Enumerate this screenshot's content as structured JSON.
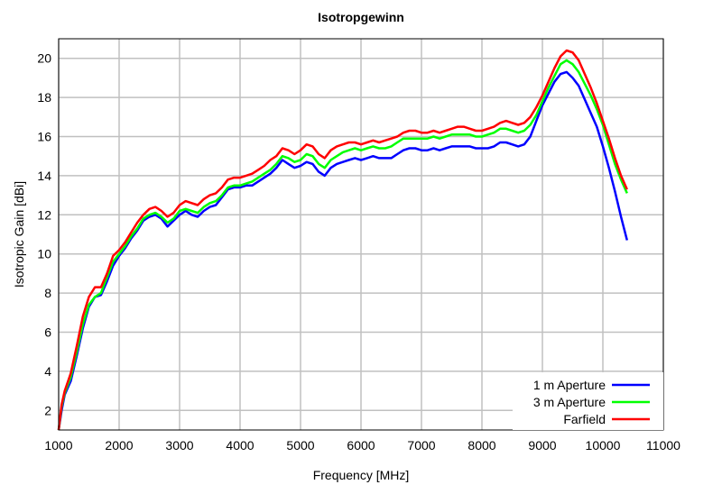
{
  "chart_data": {
    "type": "line",
    "title": "Isotropgewinn",
    "xlabel": "Frequency [MHz]",
    "ylabel": "Isotropic Gain [dBi]",
    "xlim": [
      1000,
      11000
    ],
    "ylim": [
      1,
      21
    ],
    "x_ticks": [
      1000,
      2000,
      3000,
      4000,
      5000,
      6000,
      7000,
      8000,
      9000,
      10000,
      11000
    ],
    "y_ticks": [
      2,
      4,
      6,
      8,
      10,
      12,
      14,
      16,
      18,
      20
    ],
    "grid": true,
    "legend_position": "bottom-right",
    "series": [
      {
        "name": "1 m Aperture",
        "color": "#0000ff",
        "points": [
          [
            1000,
            1.0
          ],
          [
            1050,
            2.0
          ],
          [
            1100,
            2.8
          ],
          [
            1200,
            3.5
          ],
          [
            1300,
            4.8
          ],
          [
            1400,
            6.2
          ],
          [
            1500,
            7.3
          ],
          [
            1600,
            7.8
          ],
          [
            1700,
            7.9
          ],
          [
            1800,
            8.6
          ],
          [
            1900,
            9.4
          ],
          [
            2000,
            9.9
          ],
          [
            2100,
            10.3
          ],
          [
            2200,
            10.8
          ],
          [
            2300,
            11.2
          ],
          [
            2400,
            11.7
          ],
          [
            2500,
            11.9
          ],
          [
            2600,
            12.0
          ],
          [
            2700,
            11.8
          ],
          [
            2800,
            11.4
          ],
          [
            2900,
            11.7
          ],
          [
            3000,
            12.0
          ],
          [
            3100,
            12.2
          ],
          [
            3200,
            12.0
          ],
          [
            3300,
            11.9
          ],
          [
            3400,
            12.2
          ],
          [
            3500,
            12.4
          ],
          [
            3600,
            12.5
          ],
          [
            3700,
            12.9
          ],
          [
            3800,
            13.3
          ],
          [
            3900,
            13.4
          ],
          [
            4000,
            13.4
          ],
          [
            4100,
            13.5
          ],
          [
            4200,
            13.5
          ],
          [
            4300,
            13.7
          ],
          [
            4400,
            13.9
          ],
          [
            4500,
            14.1
          ],
          [
            4600,
            14.4
          ],
          [
            4700,
            14.8
          ],
          [
            4800,
            14.6
          ],
          [
            4900,
            14.4
          ],
          [
            5000,
            14.5
          ],
          [
            5100,
            14.7
          ],
          [
            5200,
            14.6
          ],
          [
            5300,
            14.2
          ],
          [
            5400,
            14.0
          ],
          [
            5500,
            14.4
          ],
          [
            5600,
            14.6
          ],
          [
            5700,
            14.7
          ],
          [
            5800,
            14.8
          ],
          [
            5900,
            14.9
          ],
          [
            6000,
            14.8
          ],
          [
            6100,
            14.9
          ],
          [
            6200,
            15.0
          ],
          [
            6300,
            14.9
          ],
          [
            6400,
            14.9
          ],
          [
            6500,
            14.9
          ],
          [
            6600,
            15.1
          ],
          [
            6700,
            15.3
          ],
          [
            6800,
            15.4
          ],
          [
            6900,
            15.4
          ],
          [
            7000,
            15.3
          ],
          [
            7100,
            15.3
          ],
          [
            7200,
            15.4
          ],
          [
            7300,
            15.3
          ],
          [
            7400,
            15.4
          ],
          [
            7500,
            15.5
          ],
          [
            7600,
            15.5
          ],
          [
            7700,
            15.5
          ],
          [
            7800,
            15.5
          ],
          [
            7900,
            15.4
          ],
          [
            8000,
            15.4
          ],
          [
            8100,
            15.4
          ],
          [
            8200,
            15.5
          ],
          [
            8300,
            15.7
          ],
          [
            8400,
            15.7
          ],
          [
            8500,
            15.6
          ],
          [
            8600,
            15.5
          ],
          [
            8700,
            15.6
          ],
          [
            8800,
            16.0
          ],
          [
            8900,
            16.8
          ],
          [
            9000,
            17.6
          ],
          [
            9100,
            18.2
          ],
          [
            9200,
            18.8
          ],
          [
            9300,
            19.2
          ],
          [
            9400,
            19.3
          ],
          [
            9500,
            19.0
          ],
          [
            9600,
            18.6
          ],
          [
            9700,
            17.9
          ],
          [
            9800,
            17.2
          ],
          [
            9900,
            16.5
          ],
          [
            10000,
            15.5
          ],
          [
            10100,
            14.4
          ],
          [
            10200,
            13.2
          ],
          [
            10300,
            11.9
          ],
          [
            10400,
            10.7
          ]
        ]
      },
      {
        "name": "3 m Aperture",
        "color": "#00ff00",
        "points": [
          [
            1000,
            1.0
          ],
          [
            1050,
            2.2
          ],
          [
            1100,
            2.9
          ],
          [
            1200,
            3.7
          ],
          [
            1300,
            5.0
          ],
          [
            1400,
            6.4
          ],
          [
            1500,
            7.4
          ],
          [
            1600,
            7.8
          ],
          [
            1700,
            8.0
          ],
          [
            1800,
            8.8
          ],
          [
            1900,
            9.6
          ],
          [
            2000,
            10.0
          ],
          [
            2100,
            10.4
          ],
          [
            2200,
            10.9
          ],
          [
            2300,
            11.3
          ],
          [
            2400,
            11.8
          ],
          [
            2500,
            12.0
          ],
          [
            2600,
            12.1
          ],
          [
            2700,
            11.9
          ],
          [
            2800,
            11.6
          ],
          [
            2900,
            11.8
          ],
          [
            3000,
            12.2
          ],
          [
            3100,
            12.3
          ],
          [
            3200,
            12.2
          ],
          [
            3300,
            12.1
          ],
          [
            3400,
            12.4
          ],
          [
            3500,
            12.6
          ],
          [
            3600,
            12.7
          ],
          [
            3700,
            13.0
          ],
          [
            3800,
            13.4
          ],
          [
            3900,
            13.5
          ],
          [
            4000,
            13.5
          ],
          [
            4100,
            13.6
          ],
          [
            4200,
            13.7
          ],
          [
            4300,
            13.9
          ],
          [
            4400,
            14.1
          ],
          [
            4500,
            14.3
          ],
          [
            4600,
            14.6
          ],
          [
            4700,
            15.0
          ],
          [
            4800,
            14.9
          ],
          [
            4900,
            14.7
          ],
          [
            5000,
            14.8
          ],
          [
            5100,
            15.1
          ],
          [
            5200,
            15.0
          ],
          [
            5300,
            14.6
          ],
          [
            5400,
            14.4
          ],
          [
            5500,
            14.8
          ],
          [
            5600,
            15.0
          ],
          [
            5700,
            15.2
          ],
          [
            5800,
            15.3
          ],
          [
            5900,
            15.4
          ],
          [
            6000,
            15.3
          ],
          [
            6100,
            15.4
          ],
          [
            6200,
            15.5
          ],
          [
            6300,
            15.4
          ],
          [
            6400,
            15.4
          ],
          [
            6500,
            15.5
          ],
          [
            6600,
            15.7
          ],
          [
            6700,
            15.9
          ],
          [
            6800,
            15.9
          ],
          [
            6900,
            15.9
          ],
          [
            7000,
            15.9
          ],
          [
            7100,
            15.9
          ],
          [
            7200,
            16.0
          ],
          [
            7300,
            15.9
          ],
          [
            7400,
            16.0
          ],
          [
            7500,
            16.1
          ],
          [
            7600,
            16.1
          ],
          [
            7700,
            16.1
          ],
          [
            7800,
            16.1
          ],
          [
            7900,
            16.0
          ],
          [
            8000,
            16.0
          ],
          [
            8100,
            16.1
          ],
          [
            8200,
            16.2
          ],
          [
            8300,
            16.4
          ],
          [
            8400,
            16.4
          ],
          [
            8500,
            16.3
          ],
          [
            8600,
            16.2
          ],
          [
            8700,
            16.3
          ],
          [
            8800,
            16.6
          ],
          [
            8900,
            17.1
          ],
          [
            9000,
            17.8
          ],
          [
            9100,
            18.5
          ],
          [
            9200,
            19.1
          ],
          [
            9300,
            19.7
          ],
          [
            9400,
            19.9
          ],
          [
            9500,
            19.7
          ],
          [
            9600,
            19.3
          ],
          [
            9700,
            18.7
          ],
          [
            9800,
            18.1
          ],
          [
            9900,
            17.4
          ],
          [
            10000,
            16.6
          ],
          [
            10100,
            15.6
          ],
          [
            10200,
            14.6
          ],
          [
            10300,
            13.8
          ],
          [
            10400,
            13.1
          ]
        ]
      },
      {
        "name": "Farfield",
        "color": "#ff0000",
        "points": [
          [
            1000,
            1.0
          ],
          [
            1050,
            2.3
          ],
          [
            1100,
            3.0
          ],
          [
            1200,
            3.9
          ],
          [
            1300,
            5.3
          ],
          [
            1400,
            6.8
          ],
          [
            1500,
            7.8
          ],
          [
            1600,
            8.3
          ],
          [
            1700,
            8.3
          ],
          [
            1800,
            9.0
          ],
          [
            1900,
            9.9
          ],
          [
            2000,
            10.2
          ],
          [
            2100,
            10.6
          ],
          [
            2200,
            11.1
          ],
          [
            2300,
            11.6
          ],
          [
            2400,
            12.0
          ],
          [
            2500,
            12.3
          ],
          [
            2600,
            12.4
          ],
          [
            2700,
            12.2
          ],
          [
            2800,
            11.9
          ],
          [
            2900,
            12.1
          ],
          [
            3000,
            12.5
          ],
          [
            3100,
            12.7
          ],
          [
            3200,
            12.6
          ],
          [
            3300,
            12.5
          ],
          [
            3400,
            12.8
          ],
          [
            3500,
            13.0
          ],
          [
            3600,
            13.1
          ],
          [
            3700,
            13.4
          ],
          [
            3800,
            13.8
          ],
          [
            3900,
            13.9
          ],
          [
            4000,
            13.9
          ],
          [
            4100,
            14.0
          ],
          [
            4200,
            14.1
          ],
          [
            4300,
            14.3
          ],
          [
            4400,
            14.5
          ],
          [
            4500,
            14.8
          ],
          [
            4600,
            15.0
          ],
          [
            4700,
            15.4
          ],
          [
            4800,
            15.3
          ],
          [
            4900,
            15.1
          ],
          [
            5000,
            15.3
          ],
          [
            5100,
            15.6
          ],
          [
            5200,
            15.5
          ],
          [
            5300,
            15.1
          ],
          [
            5400,
            14.9
          ],
          [
            5500,
            15.3
          ],
          [
            5600,
            15.5
          ],
          [
            5700,
            15.6
          ],
          [
            5800,
            15.7
          ],
          [
            5900,
            15.7
          ],
          [
            6000,
            15.6
          ],
          [
            6100,
            15.7
          ],
          [
            6200,
            15.8
          ],
          [
            6300,
            15.7
          ],
          [
            6400,
            15.8
          ],
          [
            6500,
            15.9
          ],
          [
            6600,
            16.0
          ],
          [
            6700,
            16.2
          ],
          [
            6800,
            16.3
          ],
          [
            6900,
            16.3
          ],
          [
            7000,
            16.2
          ],
          [
            7100,
            16.2
          ],
          [
            7200,
            16.3
          ],
          [
            7300,
            16.2
          ],
          [
            7400,
            16.3
          ],
          [
            7500,
            16.4
          ],
          [
            7600,
            16.5
          ],
          [
            7700,
            16.5
          ],
          [
            7800,
            16.4
          ],
          [
            7900,
            16.3
          ],
          [
            8000,
            16.3
          ],
          [
            8100,
            16.4
          ],
          [
            8200,
            16.5
          ],
          [
            8300,
            16.7
          ],
          [
            8400,
            16.8
          ],
          [
            8500,
            16.7
          ],
          [
            8600,
            16.6
          ],
          [
            8700,
            16.7
          ],
          [
            8800,
            17.0
          ],
          [
            8900,
            17.5
          ],
          [
            9000,
            18.1
          ],
          [
            9100,
            18.8
          ],
          [
            9200,
            19.5
          ],
          [
            9300,
            20.1
          ],
          [
            9400,
            20.4
          ],
          [
            9500,
            20.3
          ],
          [
            9600,
            19.9
          ],
          [
            9700,
            19.2
          ],
          [
            9800,
            18.5
          ],
          [
            9900,
            17.7
          ],
          [
            10000,
            16.8
          ],
          [
            10100,
            15.9
          ],
          [
            10200,
            14.9
          ],
          [
            10300,
            14.0
          ],
          [
            10400,
            13.3
          ]
        ]
      }
    ]
  }
}
